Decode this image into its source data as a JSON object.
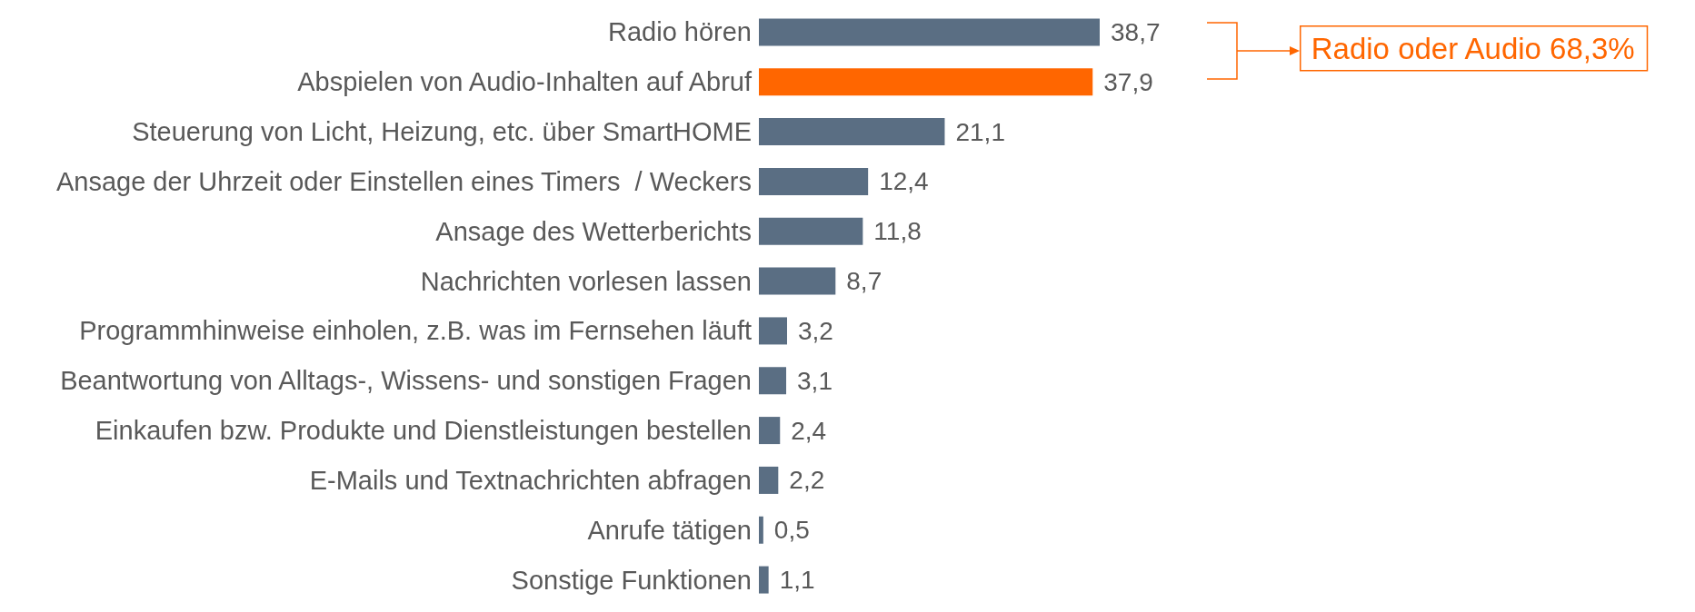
{
  "chart_data": {
    "type": "bar",
    "orientation": "horizontal",
    "categories": [
      "Radio hören",
      "Abspielen von Audio-Inhalten auf Abruf",
      "Steuerung von Licht, Heizung, etc. über SmartHOME",
      "Ansage der Uhrzeit oder Einstellen eines Timers  / Weckers",
      "Ansage des Wetterberichts",
      "Nachrichten vorlesen lassen",
      "Programmhinweise einholen, z.B. was im Fernsehen läuft",
      "Beantwortung von Alltags-, Wissens- und sonstigen Fragen",
      "Einkaufen bzw. Produkte und Dienstleistungen bestellen",
      "E-Mails und Textnachrichten abfragen",
      "Anrufe tätigen",
      "Sonstige Funktionen"
    ],
    "values": [
      38.7,
      37.9,
      21.1,
      12.4,
      11.8,
      8.7,
      3.2,
      3.1,
      2.4,
      2.2,
      0.5,
      1.1
    ],
    "value_labels": [
      "38,7",
      "37,9",
      "21,1",
      "12,4",
      "11,8",
      "8,7",
      "3,2",
      "3,1",
      "2,4",
      "2,2",
      "0,5",
      "1,1"
    ],
    "colors": [
      "#5a6e83",
      "#ff6600",
      "#5a6e83",
      "#5a6e83",
      "#5a6e83",
      "#5a6e83",
      "#5a6e83",
      "#5a6e83",
      "#5a6e83",
      "#5a6e83",
      "#5a6e83",
      "#5a6e83"
    ],
    "annotations": [
      "Radio oder Audio 68,3%"
    ]
  }
}
